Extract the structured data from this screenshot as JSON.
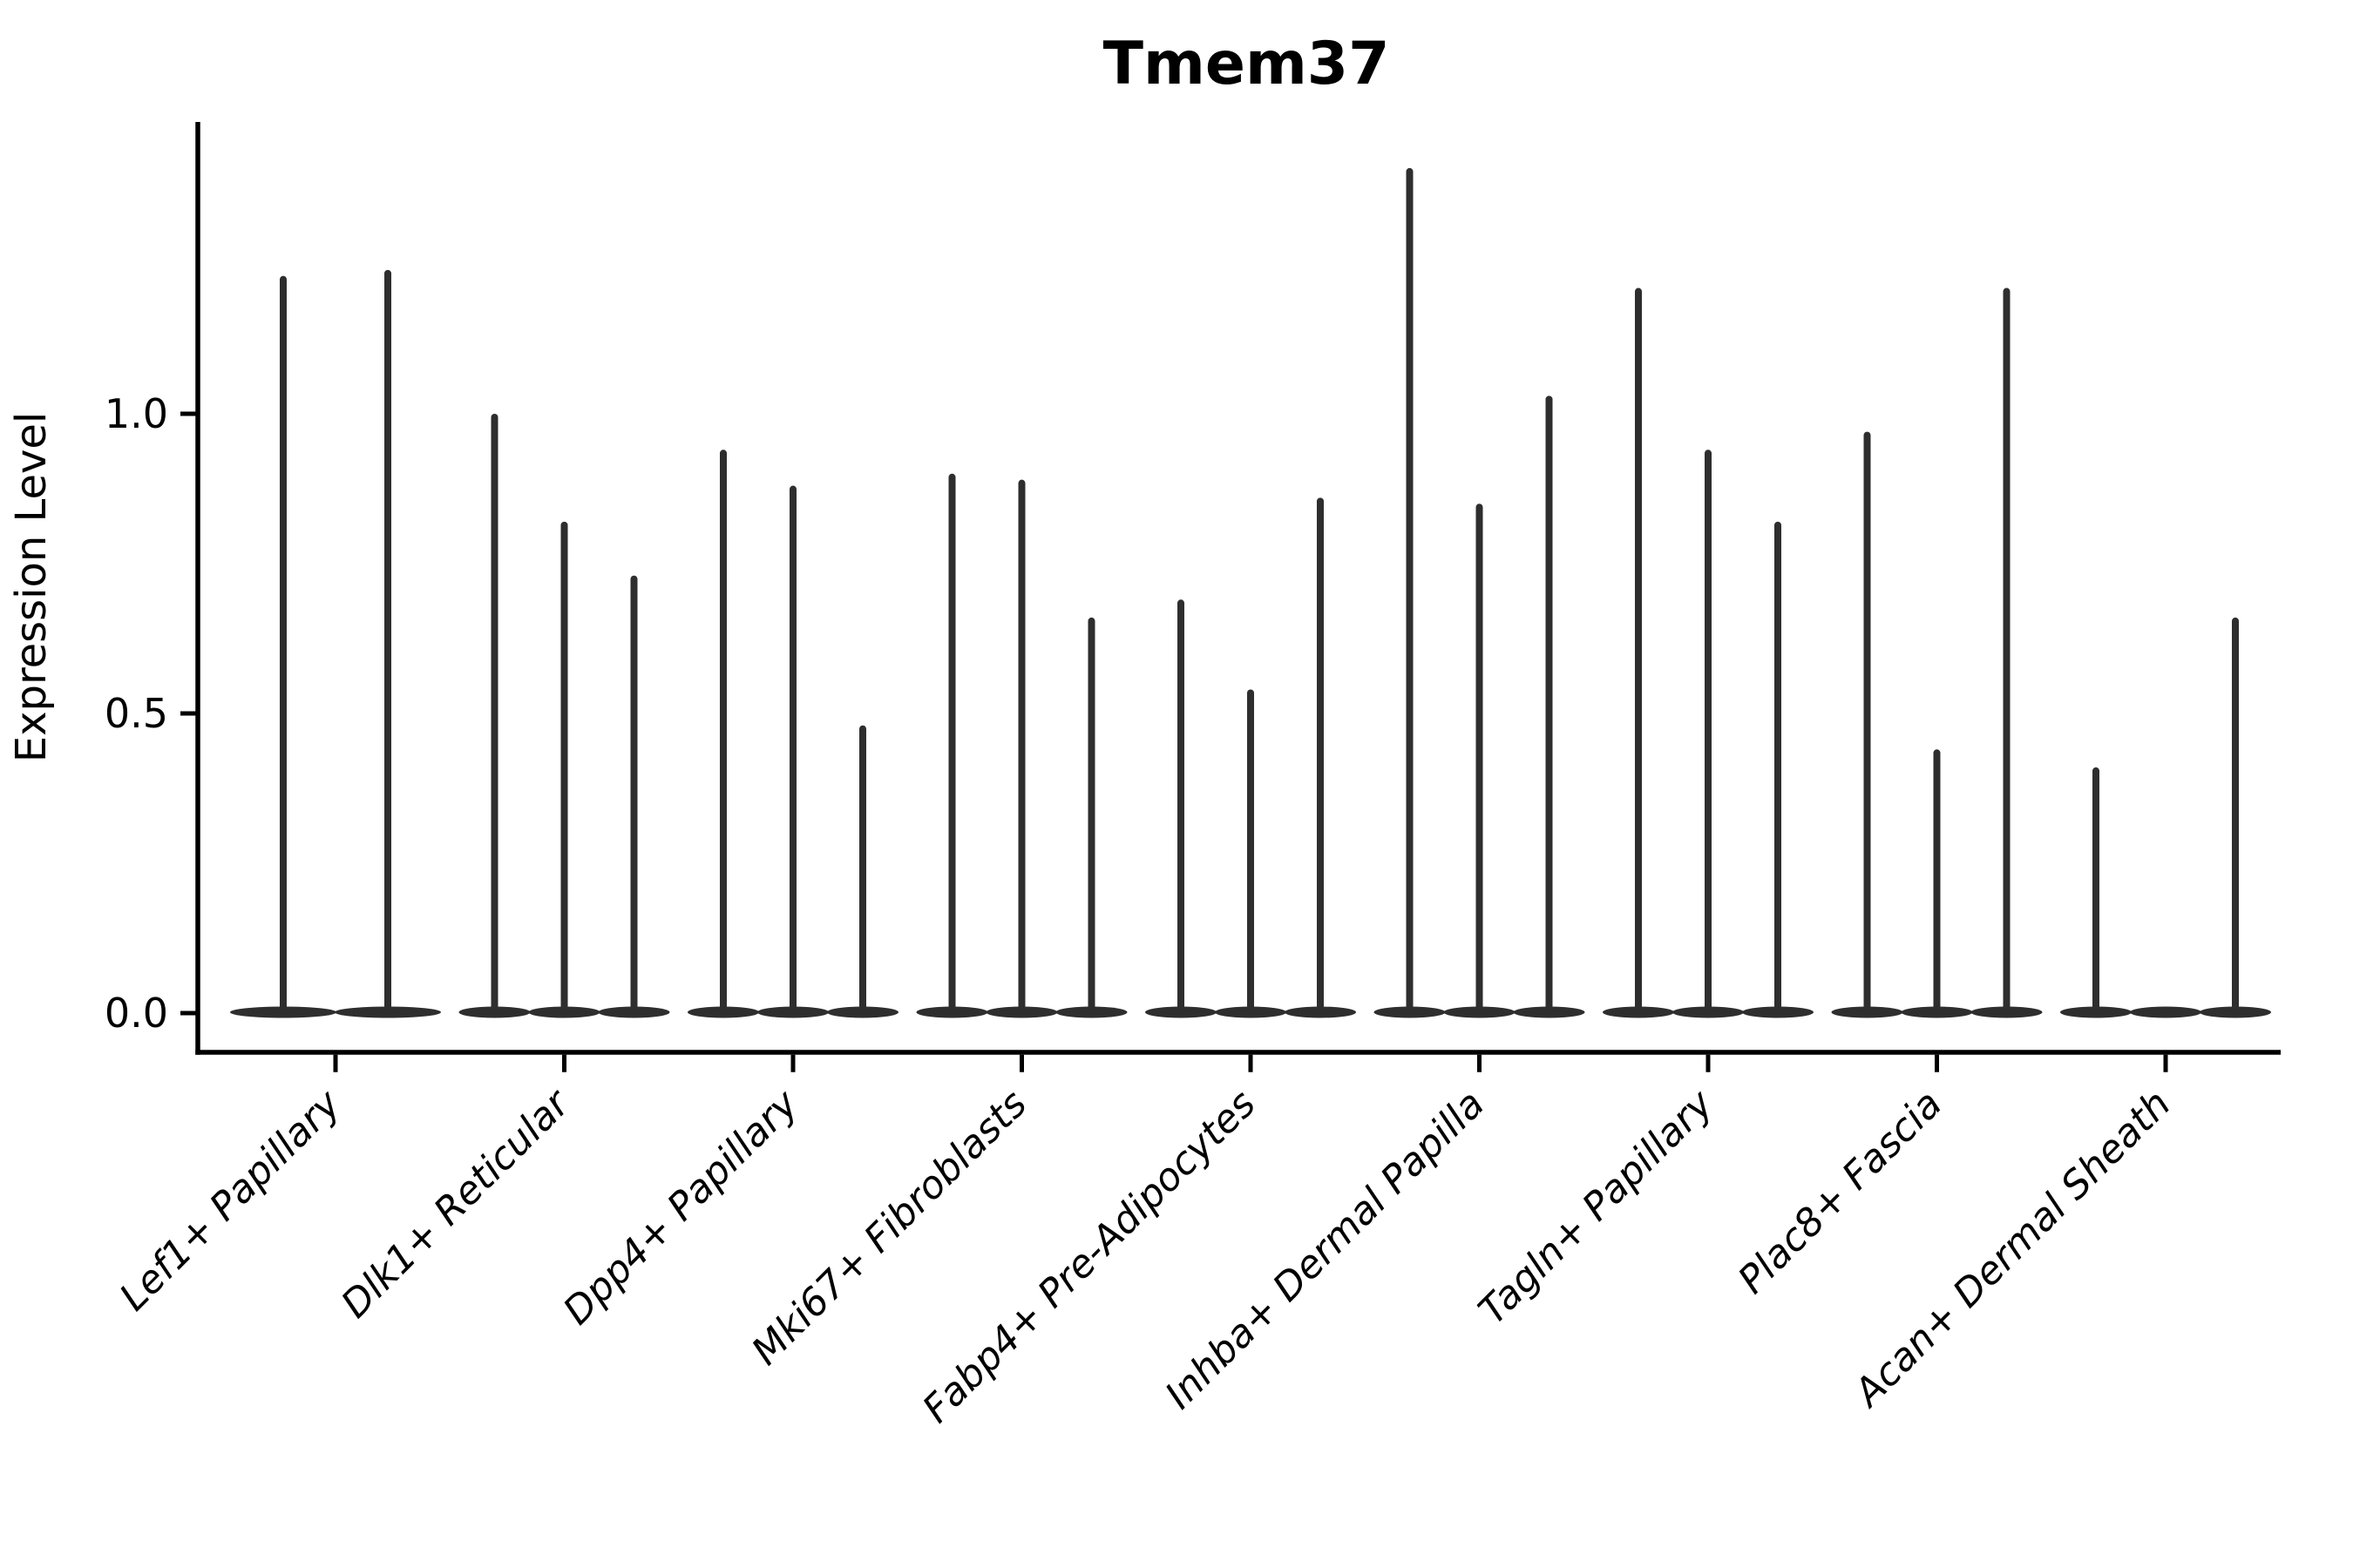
{
  "figure": {
    "background": "#ffffff"
  },
  "style": {
    "violin_color": "#2e2e2e",
    "axis_color": "#000000",
    "text_color": "#000000"
  },
  "chart_data": {
    "type": "violin",
    "title": "Tmem37",
    "xlabel": "",
    "ylabel": "Expression Level",
    "ytick_labels": [
      "0.0",
      "0.5",
      "1.0"
    ],
    "ytick_values": [
      0.0,
      0.5,
      1.0
    ],
    "ylim": [
      -0.07,
      1.49
    ],
    "grid": false,
    "legend_position": "none",
    "x_tick_rotation_deg": 45,
    "categories": [
      "Lef1+ Papillary",
      "Dlk1+ Reticular",
      "Dpp4+ Papillary",
      "Mki67+ Fibroblasts",
      "Fabp4+ Pre-Adipocytes",
      "Inhba+ Dermal Papilla",
      "Tagln+ Papillary",
      "Plac8+ Fascia",
      "Acan+ Dermal Sheath"
    ],
    "series": [
      {
        "category": "Lef1+ Papillary",
        "violin_peaks": [
          1.23,
          1.24
        ]
      },
      {
        "category": "Dlk1+ Reticular",
        "violin_peaks": [
          1.0,
          0.82,
          0.73
        ]
      },
      {
        "category": "Dpp4+ Papillary",
        "violin_peaks": [
          0.94,
          0.88,
          0.48
        ]
      },
      {
        "category": "Mki67+ Fibroblasts",
        "violin_peaks": [
          0.9,
          0.89,
          0.66
        ]
      },
      {
        "category": "Fabp4+ Pre-Adipocytes",
        "violin_peaks": [
          0.69,
          0.54,
          0.86
        ]
      },
      {
        "category": "Inhba+ Dermal Papilla",
        "violin_peaks": [
          1.41,
          0.85,
          1.03
        ]
      },
      {
        "category": "Tagln+ Papillary",
        "violin_peaks": [
          1.21,
          0.94,
          0.82
        ]
      },
      {
        "category": "Plac8+ Fascia",
        "violin_peaks": [
          0.97,
          0.44,
          1.21
        ]
      },
      {
        "category": "Acan+ Dermal Sheath",
        "violin_peaks": [
          0.41,
          0.0,
          0.66
        ]
      }
    ]
  }
}
